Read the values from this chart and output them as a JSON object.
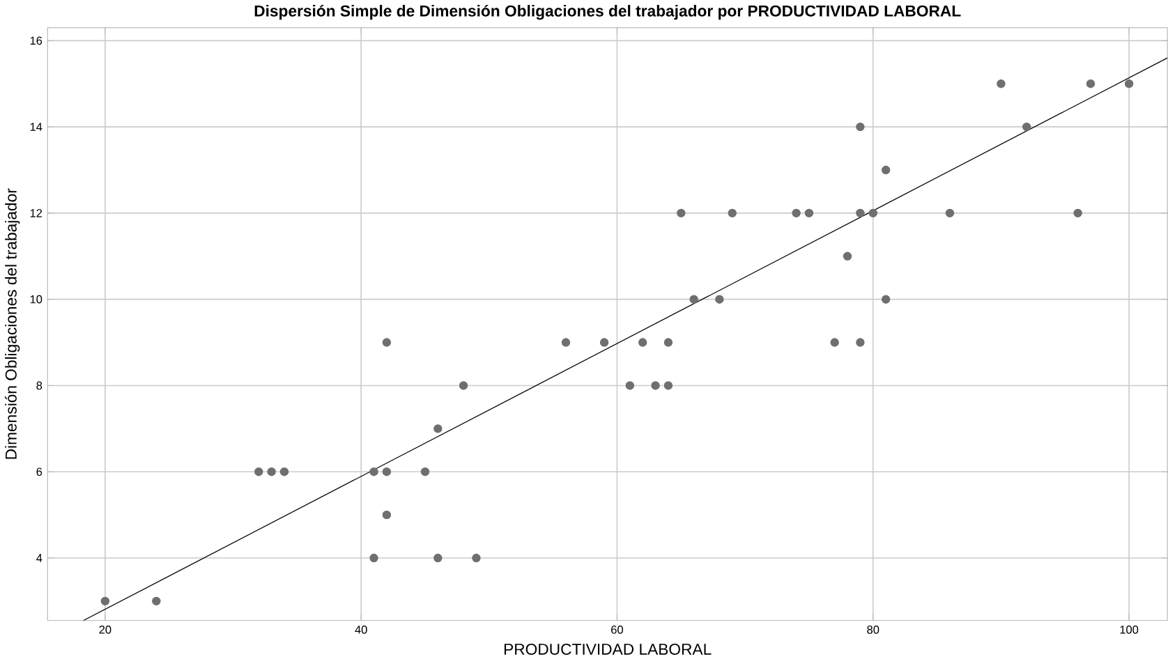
{
  "chart_data": {
    "type": "scatter",
    "title": "Dispersión Simple de Dimensión Obligaciones del trabajador por PRODUCTIVIDAD LABORAL",
    "xlabel": "PRODUCTIVIDAD LABORAL",
    "ylabel": "Dimensión Obligaciones del trabajador",
    "xlim": [
      15.5,
      103
    ],
    "ylim": [
      2.55,
      16.3
    ],
    "xticks": [
      20,
      40,
      60,
      80,
      100
    ],
    "yticks": [
      4,
      6,
      8,
      10,
      12,
      14,
      16
    ],
    "grid": true,
    "marker": "circle",
    "series": [
      {
        "color": "#6f6f6f",
        "x": [
          20,
          24,
          32,
          33,
          34,
          41,
          42,
          41,
          42,
          42,
          45,
          46,
          46,
          48,
          49,
          56,
          59,
          61,
          62,
          63,
          64,
          64,
          65,
          66,
          68,
          69,
          74,
          75,
          77,
          78,
          79,
          79,
          79,
          80,
          81,
          81,
          86,
          90,
          92,
          96,
          97,
          100
        ],
        "values": [
          3,
          3,
          6,
          6,
          6,
          6,
          6,
          4,
          5,
          9,
          6,
          7,
          4,
          8,
          4,
          9,
          9,
          8,
          9,
          8,
          8,
          9,
          12,
          10,
          10,
          12,
          12,
          12,
          9,
          11,
          14,
          12,
          9,
          12,
          13,
          10,
          12,
          15,
          14,
          12,
          15,
          15
        ]
      },
      {
        "type": "line",
        "color": "#000000",
        "marker": "none",
        "x": [
          18.3,
          103
        ],
        "values": [
          2.55,
          15.6
        ]
      }
    ]
  }
}
